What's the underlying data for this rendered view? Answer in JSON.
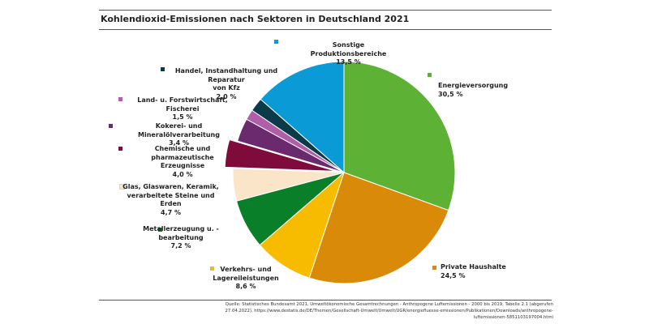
{
  "title": "Kohlendioxid-Emissionen nach Sektoren in Deutschland 2021",
  "source": "Quelle: Statistisches Bundesamt 2021, Umweltökonomische Gesamtrechnungen - Anthropogene Luftemissionen - 2000 bis 2019, Tabelle 2.1 (abgerufen 27.04.2022), https://www.destatis.de/DE/Themen/Gesellschaft-Umwelt/Umwelt/UGR/energiefluesse-emissionen/Publikationen/Downloads/anthropogene-luftemissionen-5851103197004.html",
  "chart_data": {
    "type": "pie",
    "title": "Kohlendioxid-Emissionen nach Sektoren in Deutschland 2021",
    "slices": [
      {
        "label": "Energieversorgung",
        "value": 30.5,
        "value_label": "30,5 %",
        "color": "#5DB135"
      },
      {
        "label": "Private Haushalte",
        "value": 24.5,
        "value_label": "24,5 %",
        "color": "#D98A08"
      },
      {
        "label": "Verkehrs- und Lagereileistungen",
        "value": 8.6,
        "value_label": "8,6 %",
        "color": "#F7BB00"
      },
      {
        "label": "Metallerzeugung u. -bearbeitung",
        "value": 7.2,
        "value_label": "7,2 %",
        "color": "#0A7F2A"
      },
      {
        "label": "Glas, Glaswaren, Keramik, verarbeitete Steine und Erden",
        "value": 4.7,
        "value_label": "4,7 %",
        "color": "#FBE5C8"
      },
      {
        "label": "Chemische und pharmazeutische Erzeugnisse",
        "value": 4.0,
        "value_label": "4,0 %",
        "color": "#7F0A3C"
      },
      {
        "label": "Kokerei- und Mineralölverarbeitung",
        "value": 3.4,
        "value_label": "3,4 %",
        "color": "#6B2A6E"
      },
      {
        "label": "Land- u. Forstwirtschaft, Fischerei",
        "value": 1.5,
        "value_label": "1,5 %",
        "color": "#AF5FA7"
      },
      {
        "label": "Handel, Instandhaltung und Reparatur von Kfz",
        "value": 2.0,
        "value_label": "2,0 %",
        "color": "#0B3A4A"
      },
      {
        "label": "Sonstige Produktionsbereiche",
        "value": 13.5,
        "value_label": "13,5 %",
        "color": "#0A9AD6"
      }
    ],
    "exploded": [
      "Chemische und pharmazeutische Erzeugnisse"
    ],
    "labels": [
      {
        "lines": [
          "Energieversorgung"
        ],
        "pct": "30,5 %"
      },
      {
        "lines": [
          "Private Haushalte"
        ],
        "pct": "24,5 %"
      },
      {
        "lines": [
          "Verkehrs- und",
          "Lagereileistungen"
        ],
        "pct": "8,6 %"
      },
      {
        "lines": [
          "Metallerzeugung u. -",
          "bearbeitung"
        ],
        "pct": "7,2 %"
      },
      {
        "lines": [
          "Glas, Glaswaren, Keramik,",
          "verarbeitete Steine und Erden"
        ],
        "pct": "4,7 %"
      },
      {
        "lines": [
          "Chemische und",
          "pharmazeutische Erzeugnisse"
        ],
        "pct": "4,0 %"
      },
      {
        "lines": [
          "Kokerei- und Mineralölverarbeitung"
        ],
        "pct": "3,4 %"
      },
      {
        "lines": [
          "Land- u. Forstwirtschaft, Fischerei"
        ],
        "pct": "1,5 %"
      },
      {
        "lines": [
          "Handel, Instandhaltung und Reparatur",
          "von Kfz"
        ],
        "pct": "2,0 %"
      },
      {
        "lines": [
          "Sonstige Produktionsbereiche"
        ],
        "pct": "13,5 %"
      }
    ]
  }
}
